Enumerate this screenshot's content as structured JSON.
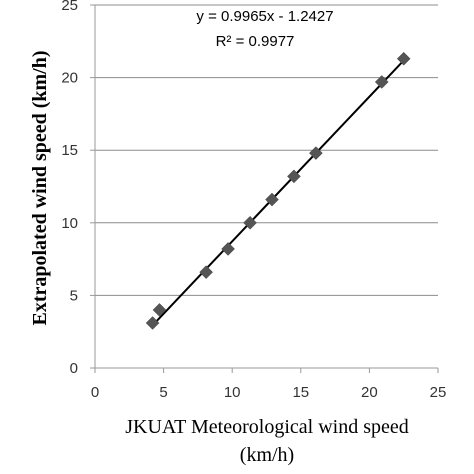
{
  "chart_data": {
    "type": "scatter",
    "xlabel_line1": "JKUAT Meteorological wind speed",
    "xlabel_line2": "(km/h)",
    "ylabel": "Extrapolated  wind speed (km/h)",
    "xlim": [
      0,
      25
    ],
    "ylim": [
      0,
      25
    ],
    "xticks": [
      0,
      5,
      10,
      15,
      20,
      25
    ],
    "yticks": [
      0,
      5,
      10,
      15,
      20,
      25
    ],
    "grid": "horizontal",
    "marker": "diamond",
    "marker_color": "#555555",
    "points": [
      {
        "x": 4.2,
        "y": 3.1
      },
      {
        "x": 4.7,
        "y": 4.0
      },
      {
        "x": 8.1,
        "y": 6.6
      },
      {
        "x": 9.7,
        "y": 8.2
      },
      {
        "x": 11.3,
        "y": 10.0
      },
      {
        "x": 12.9,
        "y": 11.6
      },
      {
        "x": 14.5,
        "y": 13.2
      },
      {
        "x": 16.1,
        "y": 14.8
      },
      {
        "x": 20.9,
        "y": 19.7
      },
      {
        "x": 22.5,
        "y": 21.3
      }
    ],
    "trendline": {
      "slope": 0.9965,
      "intercept": -1.2427,
      "x_range": [
        4.2,
        22.5
      ]
    },
    "equation_text": "y = 0.9965x - 1.2427",
    "r2_text": "R² = 0.9977"
  }
}
